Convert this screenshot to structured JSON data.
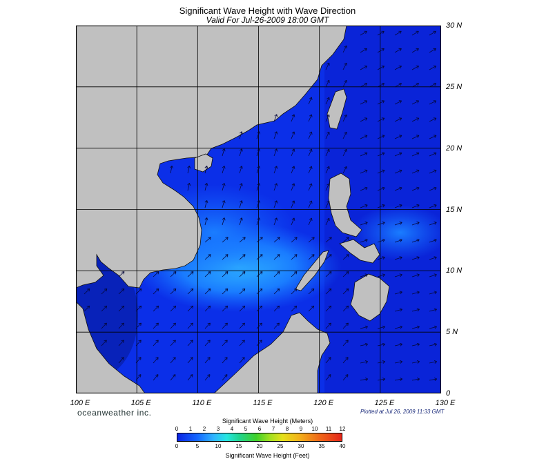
{
  "title": "Significant Wave Height with Wave Direction",
  "subtitle": "Valid For Jul-26-2009 18:00 GMT",
  "latitude_labels": [
    "30 N",
    "25 N",
    "20 N",
    "15 N",
    "10 N",
    "5 N",
    "0"
  ],
  "longitude_labels": [
    "100 E",
    "105 E",
    "110 E",
    "115 E",
    "120 E",
    "125 E",
    "130 E"
  ],
  "brand": "oceanweather inc.",
  "plotted": "Plotted at Jul 26, 2009 11:33 GMT",
  "colorbar": {
    "meters_title": "Significant Wave Height (Meters)",
    "feet_title": "Significant Wave Height (Feet)",
    "meter_ticks": [
      "0",
      "1",
      "2",
      "3",
      "4",
      "5",
      "6",
      "7",
      "8",
      "9",
      "10",
      "11",
      "12"
    ],
    "feet_ticks": [
      "0",
      "5",
      "10",
      "15",
      "20",
      "25",
      "30",
      "35",
      "40"
    ]
  },
  "colors": {
    "land": "#c0c0c0",
    "sea_low": "#0b24e3",
    "sea_mid": "#1466ff",
    "sea_high": "#2fb4ff",
    "grid": "#000000"
  }
}
